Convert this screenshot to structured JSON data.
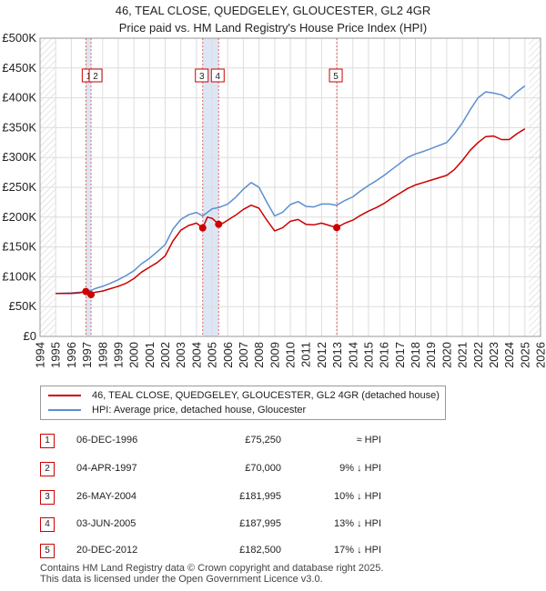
{
  "header": {
    "title_line1": "46, TEAL CLOSE, QUEDGELEY, GLOUCESTER, GL2 4GR",
    "title_line2": "Price paid vs. HM Land Registry's House Price Index (HPI)"
  },
  "colors": {
    "property": "#cc0000",
    "hpi": "#5b8fd0",
    "grid": "#dddddd",
    "shade": "#dde6f5",
    "vline": "#dd6666"
  },
  "chart_data": {
    "type": "line",
    "xlim": [
      1994,
      2026
    ],
    "ylim": [
      0,
      500000
    ],
    "xticks": [
      1994,
      1995,
      1996,
      1997,
      1998,
      1999,
      2000,
      2001,
      2002,
      2003,
      2004,
      2005,
      2006,
      2007,
      2008,
      2009,
      2010,
      2011,
      2012,
      2013,
      2014,
      2015,
      2016,
      2017,
      2018,
      2019,
      2020,
      2021,
      2022,
      2023,
      2024,
      2025,
      2026
    ],
    "yticks": [
      0,
      50000,
      100000,
      150000,
      200000,
      250000,
      300000,
      350000,
      400000,
      450000,
      500000
    ],
    "ytick_labels": [
      "£0",
      "£50K",
      "£100K",
      "£150K",
      "£200K",
      "£250K",
      "£300K",
      "£350K",
      "£400K",
      "£450K",
      "£500K"
    ],
    "data_start": 1995.0,
    "data_end": 2025.25,
    "shaded_spans": [
      [
        1996.93,
        1997.26
      ],
      [
        2004.4,
        2005.42
      ]
    ],
    "series": [
      {
        "name": "46, TEAL CLOSE, QUEDGELEY, GLOUCESTER, GL2 4GR (detached house)",
        "x": [
          1995.0,
          1996.0,
          1996.5,
          1996.93,
          1997.1,
          1997.26,
          1997.5,
          1998.0,
          1998.5,
          1999.0,
          1999.5,
          2000.0,
          2000.5,
          2001.0,
          2001.5,
          2002.0,
          2002.5,
          2003.0,
          2003.5,
          2004.0,
          2004.4,
          2004.7,
          2005.0,
          2005.42,
          2005.7,
          2006.0,
          2006.5,
          2007.0,
          2007.5,
          2008.0,
          2008.5,
          2009.0,
          2009.5,
          2010.0,
          2010.5,
          2011.0,
          2011.5,
          2012.0,
          2012.5,
          2012.97,
          2013.5,
          2014.0,
          2014.5,
          2015.0,
          2015.5,
          2016.0,
          2016.5,
          2017.0,
          2017.5,
          2018.0,
          2018.5,
          2019.0,
          2019.5,
          2020.0,
          2020.5,
          2021.0,
          2021.5,
          2022.0,
          2022.5,
          2023.0,
          2023.5,
          2024.0,
          2024.5,
          2025.0
        ],
        "values": [
          72000,
          72000,
          73000,
          75250,
          74000,
          70000,
          74000,
          76000,
          80000,
          84000,
          89000,
          97000,
          108000,
          116000,
          124000,
          135000,
          160000,
          178000,
          186000,
          190000,
          181995,
          200000,
          198000,
          187995,
          190000,
          195000,
          203000,
          213000,
          220000,
          215000,
          195000,
          177000,
          182000,
          193000,
          196000,
          188000,
          187000,
          190000,
          186000,
          182500,
          190000,
          195000,
          203000,
          210000,
          216000,
          223000,
          232000,
          240000,
          248000,
          254000,
          258000,
          262000,
          266000,
          270000,
          280000,
          295000,
          312000,
          325000,
          335000,
          336000,
          330000,
          330000,
          340000,
          348000
        ]
      },
      {
        "name": "HPI: Average price, detached house, Gloucester",
        "x": [
          1995.0,
          1996.0,
          1996.5,
          1996.93,
          1997.26,
          1997.5,
          1998.0,
          1998.5,
          1999.0,
          1999.5,
          2000.0,
          2000.5,
          2001.0,
          2001.5,
          2002.0,
          2002.5,
          2003.0,
          2003.5,
          2004.0,
          2004.4,
          2005.0,
          2005.42,
          2006.0,
          2006.5,
          2007.0,
          2007.5,
          2008.0,
          2008.5,
          2009.0,
          2009.5,
          2010.0,
          2010.5,
          2011.0,
          2011.5,
          2012.0,
          2012.5,
          2012.97,
          2013.5,
          2014.0,
          2014.5,
          2015.0,
          2015.5,
          2016.0,
          2016.5,
          2017.0,
          2017.5,
          2018.0,
          2018.5,
          2019.0,
          2019.5,
          2020.0,
          2020.5,
          2021.0,
          2021.5,
          2022.0,
          2022.5,
          2023.0,
          2023.5,
          2024.0,
          2024.5,
          2025.0
        ],
        "values": [
          72000,
          73000,
          74000,
          75300,
          77000,
          80000,
          84000,
          89000,
          95000,
          102000,
          110000,
          122000,
          131000,
          142000,
          154000,
          180000,
          196000,
          204000,
          208000,
          202000,
          214000,
          216000,
          222000,
          233000,
          247000,
          258000,
          250000,
          225000,
          202000,
          208000,
          221000,
          226000,
          218000,
          217000,
          222000,
          222000,
          220000,
          228000,
          234000,
          244000,
          253000,
          261000,
          270000,
          280000,
          290000,
          300000,
          306000,
          310000,
          315000,
          320000,
          325000,
          340000,
          358000,
          380000,
          400000,
          410000,
          408000,
          405000,
          398000,
          410000,
          420000
        ]
      }
    ],
    "markers": [
      {
        "label": "1",
        "x": 1996.93,
        "y": 75250
      },
      {
        "label": "2",
        "x": 1997.26,
        "y": 70000
      },
      {
        "label": "3",
        "x": 2004.4,
        "y": 181995
      },
      {
        "label": "4",
        "x": 2005.42,
        "y": 187995
      },
      {
        "label": "5",
        "x": 2012.97,
        "y": 182500
      }
    ]
  },
  "legend": {
    "property_label": "46, TEAL CLOSE, QUEDGELEY, GLOUCESTER, GL2 4GR (detached house)",
    "hpi_label": "HPI: Average price, detached house, Gloucester"
  },
  "transactions": [
    {
      "num": "1",
      "date": "06-DEC-1996",
      "price": "£75,250",
      "relation": "≈ HPI"
    },
    {
      "num": "2",
      "date": "04-APR-1997",
      "price": "£70,000",
      "relation": "9% ↓ HPI"
    },
    {
      "num": "3",
      "date": "26-MAY-2004",
      "price": "£181,995",
      "relation": "10% ↓ HPI"
    },
    {
      "num": "4",
      "date": "03-JUN-2005",
      "price": "£187,995",
      "relation": "13% ↓ HPI"
    },
    {
      "num": "5",
      "date": "20-DEC-2012",
      "price": "£182,500",
      "relation": "17% ↓ HPI"
    }
  ],
  "footer": {
    "line1": "Contains HM Land Registry data © Crown copyright and database right 2025.",
    "line2": "This data is licensed under the Open Government Licence v3.0."
  }
}
